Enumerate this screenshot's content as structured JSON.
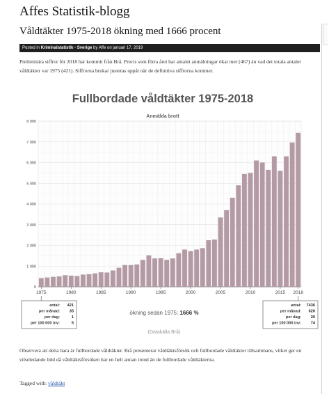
{
  "blog": {
    "title": "Affes Statistik-blogg"
  },
  "post": {
    "title": "Våldtäkter 1975-2018 ökning med 1666 procent",
    "meta_prefix": "Posted in ",
    "category": "Kriminalstatistik - Sverige",
    "meta_by": " by ",
    "author": "Affe",
    "meta_on": " on ",
    "date": "januari 17, 2019",
    "intro": "Preliminära siffror för 2018 har kommit från Brå. Precis som förra året har antalet anmälningar ökat mer (467) än vad det totala antalet våldtäkter var 1975 (421). Siffrorna brukar justeras uppåt när de definitiva siffrorna kommer.",
    "conclusion": "Observera att detta bara är fullbordade våldtäkter. Brå presenterar våldtäktsförsök och fullbordade våldtäkter tillsammans, vilket ger en vilseledande bild då våldtäktsförsöken har en helt annan trend än de fullbordade våldtäkterna.",
    "tagged_label": "Tagged with: ",
    "tag": "våldtäkt"
  },
  "chart_data": {
    "type": "bar",
    "title": "Fullbordade våldtäkter 1975-2018",
    "subtitle": "Anmälda brott",
    "x_tick_labels": [
      "1975",
      "1980",
      "1985",
      "1990",
      "1995",
      "2000",
      "2005",
      "2010",
      "2015",
      "2018"
    ],
    "y_tick_labels": [
      "0",
      "1 000",
      "2 000",
      "3 000",
      "4 000",
      "5 000",
      "6 000",
      "7 000",
      "8 000"
    ],
    "ylim": [
      0,
      8000
    ],
    "grid": true,
    "bar_color": "#b49aa4",
    "categories": [
      1975,
      1976,
      1977,
      1978,
      1979,
      1980,
      1981,
      1982,
      1983,
      1984,
      1985,
      1986,
      1987,
      1988,
      1989,
      1990,
      1991,
      1992,
      1993,
      1994,
      1995,
      1996,
      1997,
      1998,
      1999,
      2000,
      2001,
      2002,
      2003,
      2004,
      2005,
      2006,
      2007,
      2008,
      2009,
      2010,
      2011,
      2012,
      2013,
      2014,
      2015,
      2016,
      2017,
      2018
    ],
    "values": [
      421,
      450,
      480,
      500,
      560,
      540,
      520,
      590,
      610,
      650,
      700,
      690,
      790,
      920,
      1050,
      1050,
      1080,
      1300,
      1520,
      1370,
      1380,
      1300,
      1370,
      1620,
      1800,
      1720,
      1800,
      1870,
      2250,
      2280,
      3350,
      3700,
      4300,
      4900,
      5450,
      5500,
      6100,
      6000,
      5650,
      6300,
      5600,
      6300,
      6970,
      7436
    ],
    "stat_labels": [
      "antal:",
      "per månad:",
      "per dag:",
      "per 100 000 inv:"
    ],
    "start_stats": [
      "421",
      "35",
      "1",
      "5"
    ],
    "end_stats": [
      "7436",
      "620",
      "20",
      "74"
    ],
    "increase_prefix": "ökning sedan 1975: ",
    "increase_value": "1666 %",
    "source": "(Datakälla Brå)"
  }
}
